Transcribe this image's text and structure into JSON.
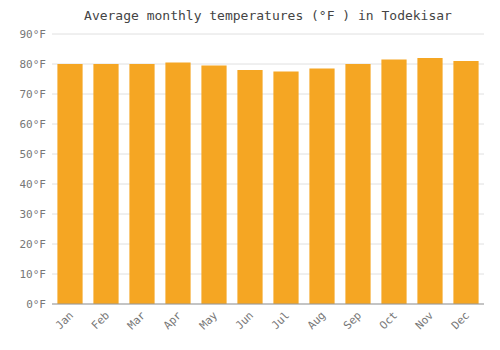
{
  "chart_data": {
    "type": "bar",
    "title": "Average monthly temperatures (°F ) in Todekisar",
    "categories": [
      "Jan",
      "Feb",
      "Mar",
      "Apr",
      "May",
      "Jun",
      "Jul",
      "Aug",
      "Sep",
      "Oct",
      "Nov",
      "Dec"
    ],
    "values": [
      80.0,
      80.0,
      80.0,
      80.5,
      79.5,
      78.0,
      77.5,
      78.5,
      80.0,
      81.5,
      82.0,
      81.0
    ],
    "color": "#F5A623",
    "ylim": [
      0,
      90
    ],
    "yticks": [
      {
        "value": 0,
        "label": "0°F"
      },
      {
        "value": 10,
        "label": "10°F"
      },
      {
        "value": 20,
        "label": "20°F"
      },
      {
        "value": 30,
        "label": "30°F"
      },
      {
        "value": 40,
        "label": "40°F"
      },
      {
        "value": 50,
        "label": "50°F"
      },
      {
        "value": 60,
        "label": "60°F"
      },
      {
        "value": 70,
        "label": "70°F"
      },
      {
        "value": 80,
        "label": "80°F"
      },
      {
        "value": 90,
        "label": "90°F"
      }
    ],
    "grid": true
  }
}
